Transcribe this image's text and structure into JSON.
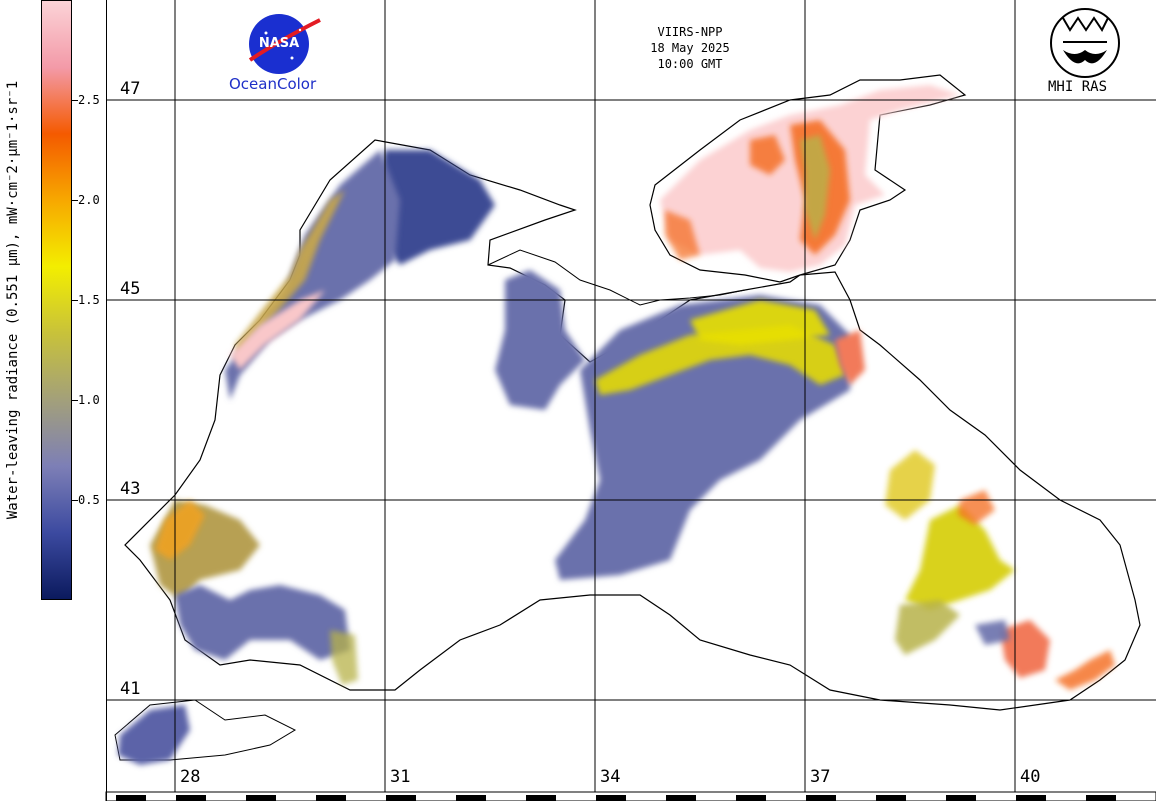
{
  "header": {
    "satellite": "VIIRS-NPP",
    "date": "18 May 2025",
    "time": "10:00 GMT"
  },
  "logos": {
    "nasa_text": "NASA",
    "oceancolor_text": "OceanColor",
    "mhi_text": "MHI RAS"
  },
  "colorbar": {
    "title": "Water-leaving radiance (0.551 µm), mW·cm⁻2·µm⁻1·sr⁻1",
    "ticks": [
      "0.5",
      "1.0",
      "1.5",
      "2.0",
      "2.5"
    ],
    "colors": [
      "#0b1a5e",
      "#3c4aa0",
      "#7d7fb6",
      "#a3a07a",
      "#c8c23a",
      "#f3ee00",
      "#f7a800",
      "#f45a00",
      "#f39aa8",
      "#fbd3d7"
    ]
  },
  "grid": {
    "latitudes": [
      "47",
      "45",
      "43",
      "41"
    ],
    "longitudes": [
      "28",
      "31",
      "34",
      "37",
      "40"
    ]
  },
  "colors": {
    "land": "#ffffff",
    "coast": "#000000",
    "low": "#6a71ac",
    "dark": "#3e4b94",
    "mid": "#b7b24a",
    "high": "#e8e000",
    "orange": "#f46a1a",
    "pink": "#fcd2d3"
  }
}
